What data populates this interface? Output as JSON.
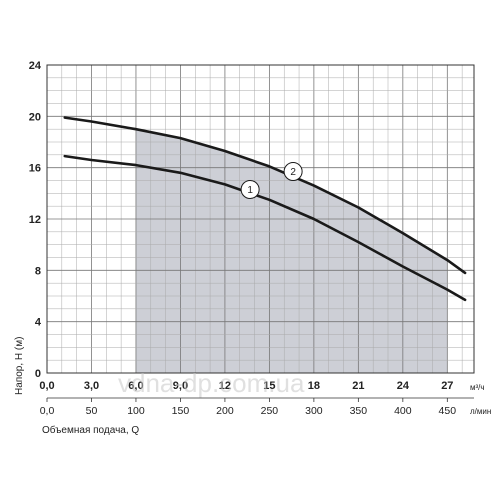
{
  "chart_data": {
    "type": "line",
    "title": "",
    "ylabel": "Напор, H (м)",
    "xlabel": "Объемная подача, Q",
    "x_unit_top": "м³/ч",
    "x_unit_bottom": "л/мин",
    "ylim": [
      0,
      24
    ],
    "xlim": [
      0,
      28.8
    ],
    "y_ticks": [
      "0",
      "4",
      "8",
      "12",
      "16",
      "20",
      "24"
    ],
    "x_ticks_top": [
      "0,0",
      "3,0",
      "6,0",
      "9,0",
      "12",
      "15",
      "18",
      "21",
      "24",
      "27"
    ],
    "x_ticks_bottom": [
      "0,0",
      "50",
      "100",
      "150",
      "200",
      "250",
      "300",
      "350",
      "400",
      "450"
    ],
    "grid": true,
    "shaded_region": {
      "x_from": 6.0,
      "x_to": 27.0
    },
    "series": [
      {
        "name": "1",
        "x": [
          1.2,
          3,
          6,
          9,
          12,
          15,
          18,
          21,
          24,
          27,
          28.2
        ],
        "y": [
          16.9,
          16.6,
          16.2,
          15.6,
          14.7,
          13.5,
          12.0,
          10.2,
          8.3,
          6.5,
          5.7
        ]
      },
      {
        "name": "2",
        "x": [
          1.2,
          3,
          6,
          9,
          12,
          15,
          18,
          21,
          24,
          27,
          28.2
        ],
        "y": [
          19.9,
          19.6,
          19.0,
          18.3,
          17.3,
          16.1,
          14.6,
          12.9,
          10.9,
          8.8,
          7.8
        ]
      }
    ],
    "curve_markers": [
      {
        "label": "1",
        "x": 13.7,
        "y": 14.3
      },
      {
        "label": "2",
        "x": 16.6,
        "y": 15.7
      }
    ],
    "watermark": "vdna-dp.com.ua"
  }
}
